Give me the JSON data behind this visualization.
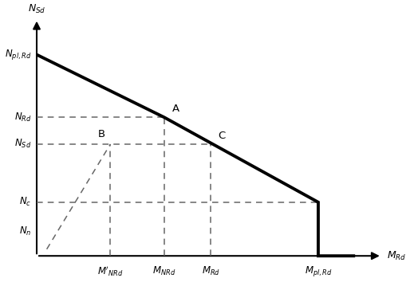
{
  "background_color": "#ffffff",
  "y_labels": {
    "N_pl_Rd": 9.0,
    "N_Rd": 6.2,
    "N_Sd": 5.0,
    "N_c": 2.4,
    "N_n": 1.1
  },
  "x_labels": {
    "M_prime_NRd": 2.2,
    "M_NRd": 3.8,
    "M_Rd": 5.2,
    "M_pl_Rd": 8.4
  },
  "curve_x": [
    0.0,
    3.8,
    8.4,
    8.4,
    9.5
  ],
  "curve_y": [
    9.0,
    6.2,
    2.4,
    0.0,
    0.0
  ],
  "point_A": [
    3.8,
    6.2
  ],
  "point_B": [
    2.2,
    5.0
  ],
  "point_C": [
    5.2,
    5.0
  ],
  "dashed_color": "#666666",
  "curve_color": "#000000",
  "curve_lw": 2.8,
  "dashed_lw": 1.1,
  "xlim": [
    -0.5,
    10.5
  ],
  "ylim": [
    -0.5,
    10.8
  ],
  "figsize": [
    5.14,
    3.54
  ],
  "dpi": 100
}
